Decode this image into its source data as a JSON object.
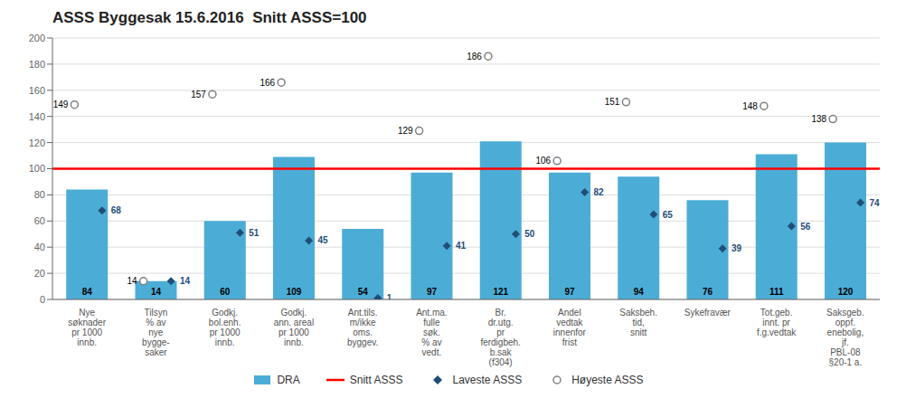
{
  "chart_data": {
    "type": "bar",
    "title": "ASSS Byggesak 15.6.2016  Snitt ASSS=100",
    "categories": [
      "Nye\nsøknader\npr 1000\ninnb.",
      "Tilsyn\n% av\nnye\nbygge-\nsaker",
      "Godkj.\nbol.enh.\npr 1000\ninnb.",
      "Godkj.\nann. areal\npr 1000\ninnb.",
      "Ant.tils.\nm/ikke\noms.\nbyggev.",
      "Ant.ma.\nfulle\nsøk.\n% av\nvedt.",
      "Br.\ndr.utg.\npr\nferdigbeh.\nb.sak\n(f304)",
      "Andel\nvedtak\ninnenfor\nfrist",
      "Saksbeh.\ntid,\nsnitt",
      "Sykefravær",
      "Tot.geb.\ninnt. pr\nf.g.vedtak",
      "Saksgeb.\noppf.\nenebolig,\njf.\nPBL-08\n§20-1 a."
    ],
    "series": [
      {
        "name": "DRA",
        "type": "bar",
        "color": "#4BADD6",
        "values": [
          84,
          14,
          60,
          109,
          54,
          97,
          121,
          97,
          94,
          76,
          111,
          120
        ],
        "data_labels": true
      },
      {
        "name": "Laveste ASSS",
        "type": "scatter",
        "marker": "diamond",
        "color": "#1F4E79",
        "values": [
          68,
          14,
          51,
          45,
          1,
          41,
          50,
          82,
          65,
          39,
          56,
          74
        ],
        "data_labels": true
      },
      {
        "name": "Høyeste ASSS",
        "type": "scatter",
        "marker": "open_circle",
        "color": "#808080",
        "values": [
          149,
          14,
          157,
          166,
          null,
          129,
          186,
          106,
          151,
          null,
          148,
          138
        ],
        "data_labels": true
      }
    ],
    "reference_line": {
      "name": "Snitt ASSS",
      "value": 100,
      "color": "#FF0000"
    },
    "ylim": [
      0,
      200
    ],
    "yticks": [
      0,
      20,
      40,
      60,
      80,
      100,
      120,
      140,
      160,
      180,
      200
    ],
    "grid": true,
    "legend": "bottom"
  }
}
